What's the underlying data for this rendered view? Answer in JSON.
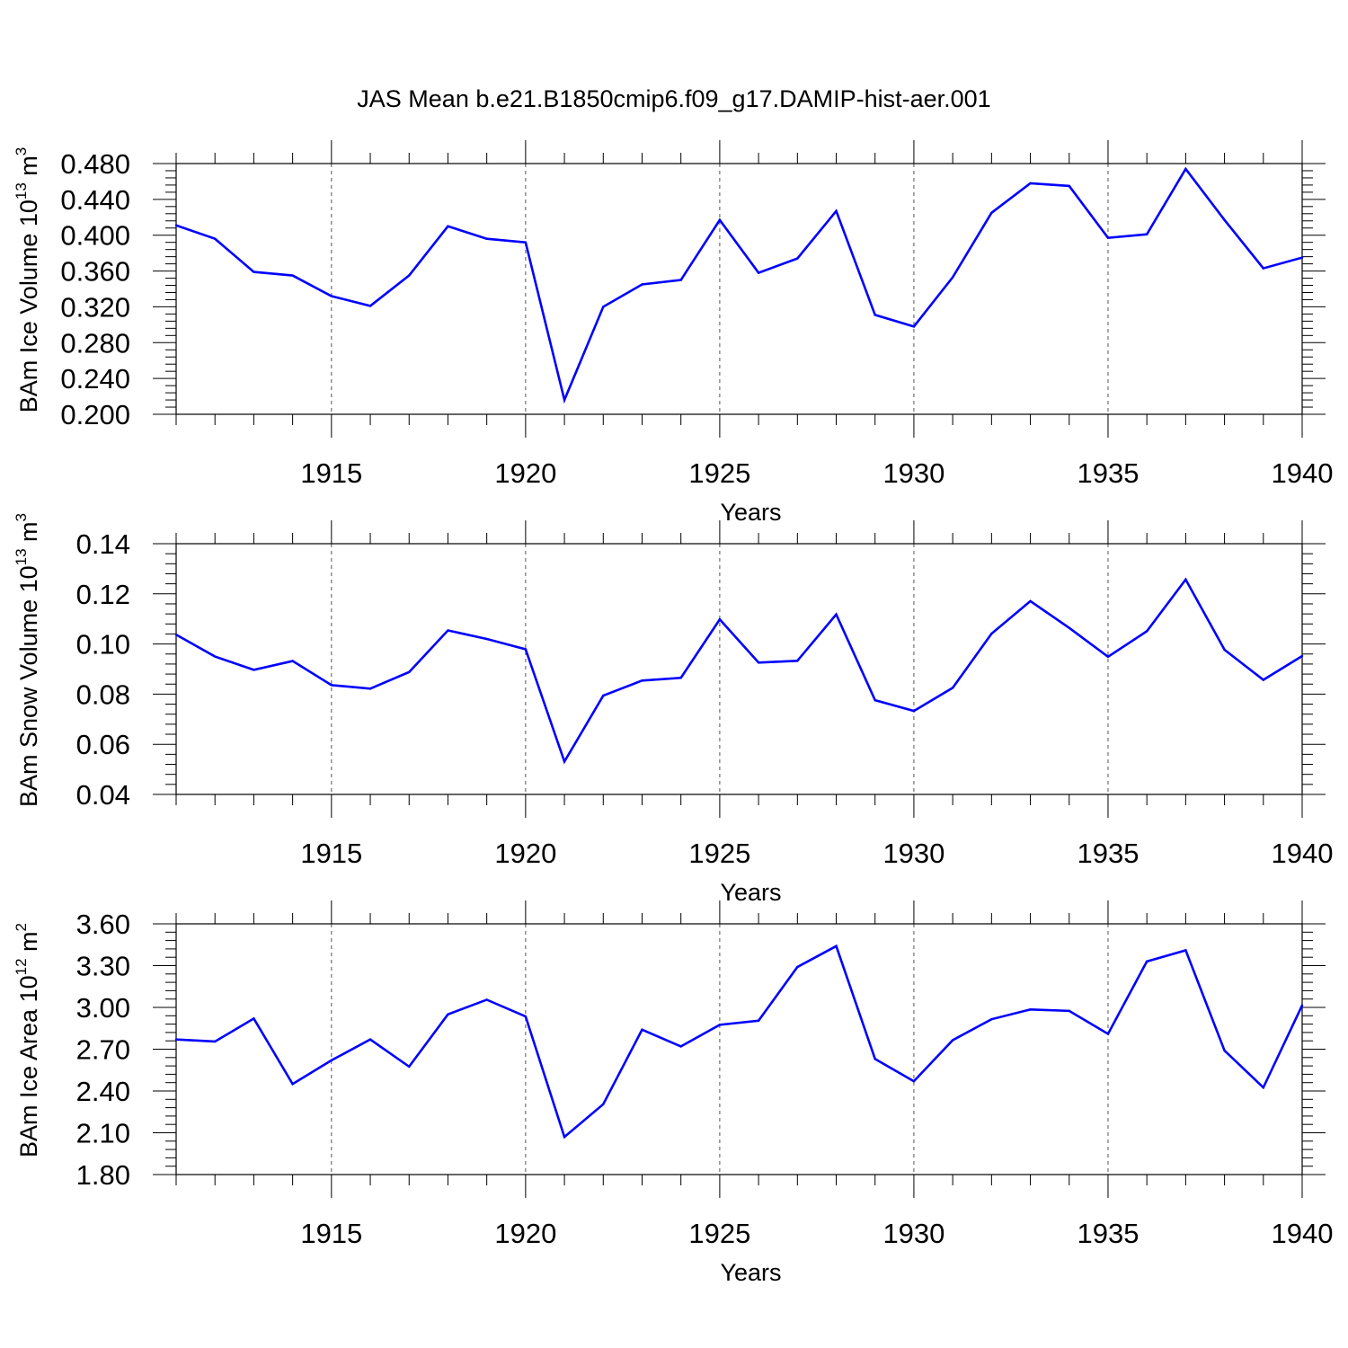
{
  "title": "JAS Mean b.e21.B1850cmip6.f09_g17.DAMIP-hist-aer.001",
  "line_color": "#0000ff",
  "grid_color": "#555555",
  "chart_data": [
    {
      "type": "line",
      "ylabel": "BAm Ice Volume 10",
      "ylabel_exp": "13",
      "ylabel_unit": "m",
      "ylabel_unit_exp": "3",
      "xlabel": "Years",
      "xlim": [
        1911,
        1940
      ],
      "ylim": [
        0.2,
        0.48
      ],
      "yticks": [
        0.2,
        0.24,
        0.28,
        0.32,
        0.36,
        0.4,
        0.44,
        0.48
      ],
      "ytick_labels": [
        "0.200",
        "0.240",
        "0.280",
        "0.320",
        "0.360",
        "0.400",
        "0.440",
        "0.480"
      ],
      "xticks": [
        1915,
        1920,
        1925,
        1930,
        1935,
        1940
      ],
      "xtick_labels": [
        "1915",
        "1920",
        "1925",
        "1930",
        "1935",
        "1940"
      ],
      "x": [
        1911,
        1912,
        1913,
        1914,
        1915,
        1916,
        1917,
        1918,
        1919,
        1920,
        1921,
        1922,
        1923,
        1924,
        1925,
        1926,
        1927,
        1928,
        1929,
        1930,
        1931,
        1932,
        1933,
        1934,
        1935,
        1936,
        1937,
        1938,
        1939,
        1940
      ],
      "values": [
        0.411,
        0.396,
        0.359,
        0.355,
        0.332,
        0.321,
        0.355,
        0.41,
        0.396,
        0.392,
        0.216,
        0.32,
        0.345,
        0.35,
        0.417,
        0.358,
        0.374,
        0.427,
        0.311,
        0.298,
        0.353,
        0.425,
        0.458,
        0.455,
        0.397,
        0.401,
        0.474,
        0.417,
        0.363,
        0.375
      ]
    },
    {
      "type": "line",
      "ylabel": "BAm Snow Volume 10",
      "ylabel_exp": "13",
      "ylabel_unit": "m",
      "ylabel_unit_exp": "3",
      "xlabel": "Years",
      "xlim": [
        1911,
        1940
      ],
      "ylim": [
        0.04,
        0.14
      ],
      "yticks": [
        0.04,
        0.06,
        0.08,
        0.1,
        0.12,
        0.14
      ],
      "ytick_labels": [
        "0.04",
        "0.06",
        "0.08",
        "0.10",
        "0.12",
        "0.14"
      ],
      "xticks": [
        1915,
        1920,
        1925,
        1930,
        1935,
        1940
      ],
      "xtick_labels": [
        "1915",
        "1920",
        "1925",
        "1930",
        "1935",
        "1940"
      ],
      "x": [
        1911,
        1912,
        1913,
        1914,
        1915,
        1916,
        1917,
        1918,
        1919,
        1920,
        1921,
        1922,
        1923,
        1924,
        1925,
        1926,
        1927,
        1928,
        1929,
        1930,
        1931,
        1932,
        1933,
        1934,
        1935,
        1936,
        1937,
        1938,
        1939,
        1940
      ],
      "values": [
        0.1037,
        0.095,
        0.0897,
        0.0932,
        0.0836,
        0.0822,
        0.0888,
        0.1054,
        0.102,
        0.0979,
        0.0531,
        0.0794,
        0.0854,
        0.0865,
        0.1098,
        0.0926,
        0.0933,
        0.1118,
        0.0776,
        0.0733,
        0.0825,
        0.1041,
        0.1171,
        0.1064,
        0.0949,
        0.1051,
        0.1257,
        0.0977,
        0.0857,
        0.0952
      ]
    },
    {
      "type": "line",
      "ylabel": "BAm Ice Area 10",
      "ylabel_exp": "12",
      "ylabel_unit": "m",
      "ylabel_unit_exp": "2",
      "xlabel": "Years",
      "xlim": [
        1911,
        1940
      ],
      "ylim": [
        1.8,
        3.6
      ],
      "yticks": [
        1.8,
        2.1,
        2.4,
        2.7,
        3.0,
        3.3,
        3.6
      ],
      "ytick_labels": [
        "1.80",
        "2.10",
        "2.40",
        "2.70",
        "3.00",
        "3.30",
        "3.60"
      ],
      "xticks": [
        1915,
        1920,
        1925,
        1930,
        1935,
        1940
      ],
      "xtick_labels": [
        "1915",
        "1920",
        "1925",
        "1930",
        "1935",
        "1940"
      ],
      "x": [
        1911,
        1912,
        1913,
        1914,
        1915,
        1916,
        1917,
        1918,
        1919,
        1920,
        1921,
        1922,
        1923,
        1924,
        1925,
        1926,
        1927,
        1928,
        1929,
        1930,
        1931,
        1932,
        1933,
        1934,
        1935,
        1936,
        1937,
        1938,
        1939,
        1940
      ],
      "values": [
        2.77,
        2.755,
        2.92,
        2.45,
        2.62,
        2.77,
        2.575,
        2.95,
        3.055,
        2.935,
        2.07,
        2.305,
        2.84,
        2.72,
        2.875,
        2.905,
        3.29,
        3.44,
        2.63,
        2.47,
        2.765,
        2.915,
        2.985,
        2.975,
        2.81,
        3.33,
        3.41,
        2.69,
        2.425,
        3.015
      ]
    }
  ]
}
